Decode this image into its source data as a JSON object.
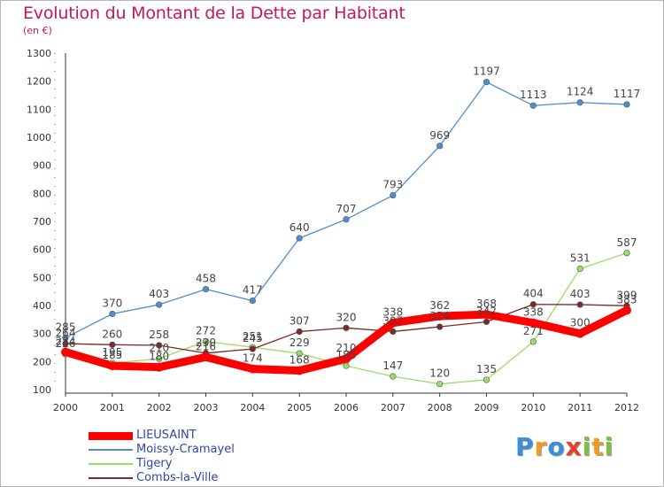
{
  "header": {
    "title": "Evolution du Montant de la Dette par Habitant",
    "subtitle": "(en €)"
  },
  "logo": {
    "text": "Proxiti",
    "letters": [
      {
        "ch": "P",
        "color": "#3b8fd8"
      },
      {
        "ch": "r",
        "color": "#f29b1f"
      },
      {
        "ch": "o",
        "color": "#3b8fd8"
      },
      {
        "ch": "x",
        "color": "#e8402a"
      },
      {
        "ch": "i",
        "color": "#7cc242"
      },
      {
        "ch": "t",
        "color": "#f29b1f"
      },
      {
        "ch": "i",
        "color": "#7cc242"
      }
    ]
  },
  "chart_data": {
    "type": "line",
    "title": "Evolution du Montant de la Dette par Habitant",
    "ylabel": "(en €)",
    "xlabel": "",
    "x": [
      "2000",
      "2001",
      "2002",
      "2003",
      "2004",
      "2005",
      "2006",
      "2007",
      "2008",
      "2009",
      "2010",
      "2011",
      "2012"
    ],
    "ylim": [
      100,
      1300
    ],
    "yticks": [
      100,
      200,
      300,
      400,
      500,
      600,
      700,
      800,
      900,
      1000,
      1100,
      1200,
      1300
    ],
    "grid": false,
    "legend_position": "bottom-left",
    "series": [
      {
        "name": "LIEUSAINT",
        "color": "#ff0000",
        "values": [
          234,
          185,
          180,
          216,
          174,
          168,
          210,
          338,
          362,
          368,
          338,
          300,
          383
        ],
        "labels": [
          "234",
          "185",
          "180",
          "216",
          "174",
          "168",
          "210",
          "338",
          "362",
          "368",
          "338",
          "300",
          "383"
        ]
      },
      {
        "name": "Moissy-Cramayel",
        "color": "#4d8fcc",
        "values": [
          285,
          370,
          403,
          458,
          417,
          640,
          707,
          793,
          969,
          1197,
          1113,
          1124,
          1117
        ],
        "labels": [
          "285",
          "370",
          "403",
          "458",
          "417",
          "640",
          "707",
          "793",
          "969",
          "1197",
          "1113",
          "1124",
          "1117"
        ]
      },
      {
        "name": "Tigery",
        "color": "#99dd66",
        "values": [
          226,
          195,
          210,
          272,
          251,
          229,
          185,
          147,
          120,
          135,
          271,
          531,
          587
        ],
        "labels": [
          "226",
          "195",
          "210",
          "272",
          "251",
          "229",
          "185",
          "147",
          "120",
          "135",
          "271",
          "531",
          "587"
        ]
      },
      {
        "name": "Combs-la-Ville",
        "color": "#7a2a2a",
        "values": [
          264,
          260,
          258,
          230,
          245,
          307,
          320,
          307,
          324,
          342,
          404,
          403,
          399
        ],
        "labels": [
          "264",
          "260",
          "258",
          "230",
          "245",
          "307",
          "320",
          "307",
          "324",
          "342",
          "404",
          "403",
          "399"
        ]
      }
    ]
  }
}
